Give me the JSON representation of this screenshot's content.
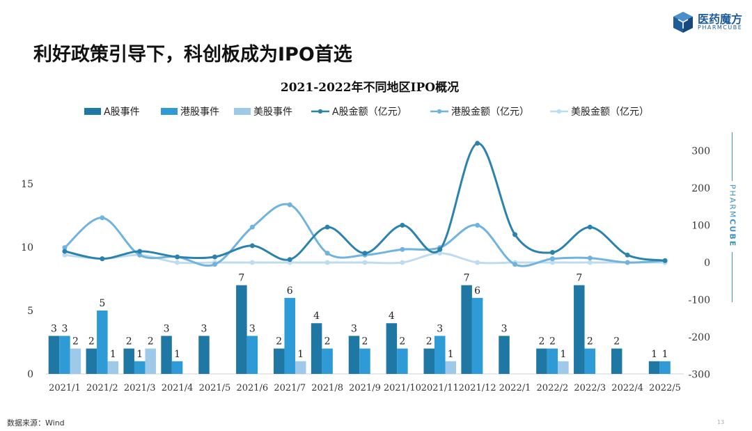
{
  "slide": {
    "title": "利好政策引导下，科创板成为IPO首选",
    "source": "数据来源：Wind",
    "page_number": "13"
  },
  "logo": {
    "name": "医药魔方",
    "sub": "PHARMCUBE"
  },
  "side_label": {
    "part1": "PHARM",
    "part2": "CUBE"
  },
  "colors": {
    "a_share": "#1f77a4",
    "hk": "#2e9bd6",
    "us": "#9ec9e8",
    "a_share_line": "#2a82ad",
    "hk_line": "#6fb3de",
    "us_line": "#bedcf0"
  },
  "chart_data": {
    "type": "bar+line",
    "title": "2021-2022年不同地区IPO概况",
    "categories": [
      "2021/1",
      "2021/2",
      "2021/3",
      "2021/4",
      "2021/5",
      "2021/6",
      "2021/7",
      "2021/8",
      "2021/9",
      "2021/10",
      "2021/11",
      "2021/12",
      "2022/1",
      "2022/2",
      "2022/3",
      "2022/4",
      "2022/5"
    ],
    "left_axis": {
      "ticks": [
        0,
        5,
        10,
        15
      ]
    },
    "right_axis": {
      "ticks": [
        -300,
        -200,
        -100,
        0,
        100,
        200,
        300
      ]
    },
    "bar_series": [
      {
        "name": "A股事件",
        "color": "#1f77a4",
        "values": [
          3,
          2,
          2,
          3,
          3,
          7,
          2,
          4,
          3,
          4,
          2,
          7,
          3,
          2,
          7,
          2,
          1
        ]
      },
      {
        "name": "港股事件",
        "color": "#2e9bd6",
        "values": [
          3,
          5,
          1,
          1,
          0,
          3,
          6,
          2,
          2,
          2,
          3,
          6,
          0,
          2,
          2,
          0,
          1
        ]
      },
      {
        "name": "美股事件",
        "color": "#9ec9e8",
        "values": [
          2,
          1,
          2,
          0,
          0,
          0,
          1,
          0,
          0,
          0,
          1,
          0,
          0,
          1,
          0,
          0,
          0
        ]
      }
    ],
    "line_series": [
      {
        "name": "A股金额（亿元）",
        "color": "#2a82ad",
        "values": [
          30,
          10,
          30,
          15,
          15,
          45,
          8,
          95,
          25,
          100,
          35,
          320,
          75,
          27,
          95,
          20,
          5
        ]
      },
      {
        "name": "港股金额（亿元）",
        "color": "#6fb3de",
        "values": [
          40,
          120,
          20,
          15,
          -5,
          95,
          155,
          25,
          20,
          35,
          40,
          100,
          -5,
          10,
          12,
          0,
          5
        ]
      },
      {
        "name": "美股金额（亿元）",
        "color": "#bedcf0",
        "values": [
          20,
          10,
          20,
          0,
          0,
          0,
          0,
          0,
          0,
          0,
          25,
          0,
          0,
          0,
          0,
          0,
          0
        ]
      }
    ]
  }
}
